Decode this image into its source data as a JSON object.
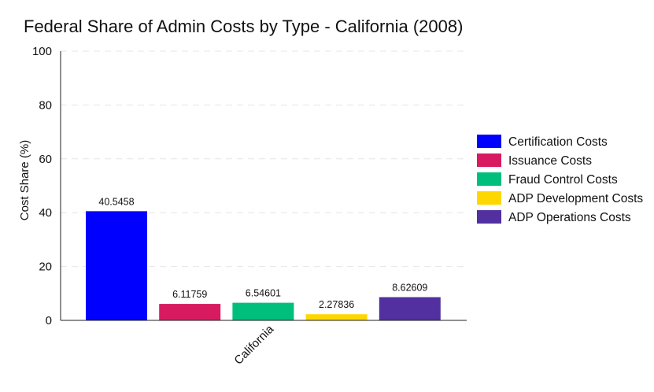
{
  "chart_data": {
    "type": "bar",
    "title": "Federal Share of Admin Costs by Type - California (2008)",
    "xlabel": "",
    "ylabel": "Cost Share (%)",
    "categories": [
      "California"
    ],
    "ylim": [
      0,
      100
    ],
    "yticks": [
      0,
      20,
      40,
      60,
      80,
      100
    ],
    "grid": true,
    "legend_position": "right",
    "series": [
      {
        "name": "Certification Costs",
        "values": [
          40.5458
        ],
        "label": "40.5458",
        "color": "#0000ff"
      },
      {
        "name": "Issuance Costs",
        "values": [
          6.11759
        ],
        "label": "6.11759",
        "color": "#d81b60"
      },
      {
        "name": "Fraud Control Costs",
        "values": [
          6.54601
        ],
        "label": "6.54601",
        "color": "#00bf7d"
      },
      {
        "name": "ADP Development Costs",
        "values": [
          2.27836
        ],
        "label": "2.27836",
        "color": "#ffd700"
      },
      {
        "name": "ADP Operations Costs",
        "values": [
          8.62609
        ],
        "label": "8.62609",
        "color": "#5230a0"
      }
    ]
  }
}
